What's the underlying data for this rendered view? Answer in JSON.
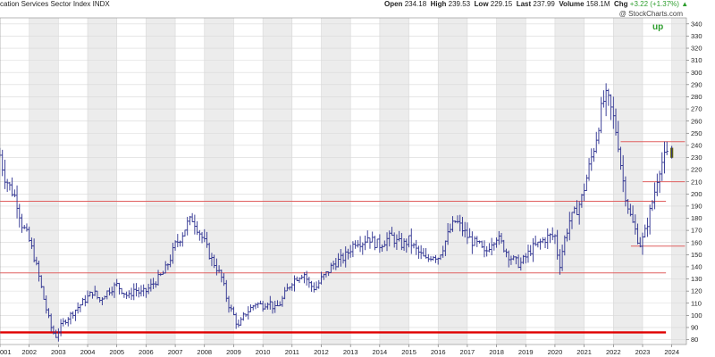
{
  "header": {
    "title": "cation Services Sector Index",
    "symbol": "INDX",
    "open_label": "Open",
    "open": "234.18",
    "high_label": "High",
    "high": "239.53",
    "low_label": "Low",
    "low": "229.15",
    "last_label": "Last",
    "last": "237.99",
    "volume_label": "Volume",
    "volume": "158.1M",
    "chg_label": "Chg",
    "chg": "+3.22 (+1.37%)",
    "chg_arrow": "▲"
  },
  "copyright": "@ StockCharts.com",
  "annotation": "up",
  "colors": {
    "bar": "#2b2f8f",
    "last_bar": "#6b6b00",
    "support_line": "#e06060",
    "major_line": "#e00000",
    "grid": "#d8d8d8",
    "band": "#ececec",
    "up": "#2e9e2e"
  },
  "chart_data": {
    "type": "ohlc",
    "title": "",
    "xlabel": "",
    "ylabel": "",
    "x_ticks": [
      "001",
      "2002",
      "2003",
      "2004",
      "2005",
      "2006",
      "2007",
      "2008",
      "2009",
      "2010",
      "2011",
      "2012",
      "2013",
      "2014",
      "2015",
      "2016",
      "2017",
      "2018",
      "2019",
      "2020",
      "2021",
      "2022",
      "2023",
      "2024"
    ],
    "y_ticks": [
      80,
      90,
      100,
      110,
      120,
      130,
      140,
      150,
      160,
      170,
      180,
      190,
      200,
      210,
      220,
      230,
      240,
      250,
      260,
      270,
      280,
      290,
      300,
      310,
      320,
      330,
      340
    ],
    "ylim": [
      76,
      345
    ],
    "xlim": [
      2001.0,
      2024.5
    ],
    "grid": true,
    "price_path": [
      [
        2001.0,
        232
      ],
      [
        2001.15,
        215
      ],
      [
        2001.35,
        205
      ],
      [
        2001.55,
        196
      ],
      [
        2001.75,
        175
      ],
      [
        2001.95,
        165
      ],
      [
        2002.15,
        150
      ],
      [
        2002.35,
        130
      ],
      [
        2002.55,
        108
      ],
      [
        2002.75,
        90
      ],
      [
        2002.9,
        82
      ],
      [
        2003.05,
        90
      ],
      [
        2003.2,
        95
      ],
      [
        2003.4,
        100
      ],
      [
        2003.6,
        105
      ],
      [
        2003.8,
        110
      ],
      [
        2004.0,
        115
      ],
      [
        2004.2,
        120
      ],
      [
        2004.4,
        112
      ],
      [
        2004.6,
        118
      ],
      [
        2004.8,
        122
      ],
      [
        2005.0,
        125
      ],
      [
        2005.2,
        120
      ],
      [
        2005.4,
        115
      ],
      [
        2005.6,
        122
      ],
      [
        2005.8,
        118
      ],
      [
        2006.0,
        120
      ],
      [
        2006.2,
        125
      ],
      [
        2006.4,
        130
      ],
      [
        2006.6,
        135
      ],
      [
        2006.8,
        145
      ],
      [
        2007.0,
        158
      ],
      [
        2007.2,
        165
      ],
      [
        2007.4,
        175
      ],
      [
        2007.6,
        180
      ],
      [
        2007.8,
        170
      ],
      [
        2008.0,
        160
      ],
      [
        2008.2,
        148
      ],
      [
        2008.4,
        140
      ],
      [
        2008.6,
        130
      ],
      [
        2008.8,
        110
      ],
      [
        2009.0,
        100
      ],
      [
        2009.15,
        90
      ],
      [
        2009.35,
        100
      ],
      [
        2009.55,
        105
      ],
      [
        2009.75,
        110
      ],
      [
        2010.0,
        108
      ],
      [
        2010.2,
        112
      ],
      [
        2010.4,
        105
      ],
      [
        2010.6,
        110
      ],
      [
        2010.8,
        120
      ],
      [
        2011.0,
        128
      ],
      [
        2011.2,
        132
      ],
      [
        2011.4,
        135
      ],
      [
        2011.6,
        125
      ],
      [
        2011.8,
        122
      ],
      [
        2012.0,
        130
      ],
      [
        2012.2,
        135
      ],
      [
        2012.4,
        142
      ],
      [
        2012.6,
        145
      ],
      [
        2012.8,
        148
      ],
      [
        2013.0,
        155
      ],
      [
        2013.2,
        162
      ],
      [
        2013.4,
        160
      ],
      [
        2013.6,
        165
      ],
      [
        2013.8,
        160
      ],
      [
        2014.0,
        158
      ],
      [
        2014.2,
        162
      ],
      [
        2014.4,
        165
      ],
      [
        2014.6,
        160
      ],
      [
        2014.8,
        158
      ],
      [
        2015.0,
        162
      ],
      [
        2015.2,
        155
      ],
      [
        2015.4,
        150
      ],
      [
        2015.6,
        145
      ],
      [
        2015.8,
        150
      ],
      [
        2016.0,
        148
      ],
      [
        2016.2,
        158
      ],
      [
        2016.4,
        170
      ],
      [
        2016.6,
        178
      ],
      [
        2016.8,
        172
      ],
      [
        2017.0,
        165
      ],
      [
        2017.2,
        160
      ],
      [
        2017.4,
        158
      ],
      [
        2017.6,
        150
      ],
      [
        2017.8,
        160
      ],
      [
        2018.0,
        165
      ],
      [
        2018.2,
        158
      ],
      [
        2018.4,
        150
      ],
      [
        2018.6,
        145
      ],
      [
        2018.8,
        142
      ],
      [
        2019.0,
        148
      ],
      [
        2019.2,
        155
      ],
      [
        2019.4,
        158
      ],
      [
        2019.6,
        162
      ],
      [
        2019.8,
        165
      ],
      [
        2020.0,
        165
      ],
      [
        2020.15,
        140
      ],
      [
        2020.3,
        160
      ],
      [
        2020.5,
        178
      ],
      [
        2020.7,
        185
      ],
      [
        2020.9,
        195
      ],
      [
        2021.05,
        210
      ],
      [
        2021.2,
        225
      ],
      [
        2021.4,
        245
      ],
      [
        2021.55,
        265
      ],
      [
        2021.7,
        280
      ],
      [
        2021.85,
        275
      ],
      [
        2022.0,
        262
      ],
      [
        2022.15,
        245
      ],
      [
        2022.3,
        215
      ],
      [
        2022.45,
        195
      ],
      [
        2022.6,
        180
      ],
      [
        2022.75,
        170
      ],
      [
        2022.9,
        158
      ],
      [
        2023.05,
        165
      ],
      [
        2023.2,
        180
      ],
      [
        2023.4,
        200
      ],
      [
        2023.55,
        220
      ],
      [
        2023.7,
        228
      ],
      [
        2023.85,
        232
      ],
      [
        2023.95,
        238
      ]
    ],
    "horizontal_lines": [
      {
        "y": 243,
        "x_start": 2022.25,
        "x_end": 2024.45,
        "style": "support"
      },
      {
        "y": 210,
        "x_start": 2023.0,
        "x_end": 2024.45,
        "style": "support"
      },
      {
        "y": 194,
        "x_start": 2001.0,
        "x_end": 2023.8,
        "style": "support"
      },
      {
        "y": 157,
        "x_start": 2022.6,
        "x_end": 2024.45,
        "style": "support"
      },
      {
        "y": 135,
        "x_start": 2001.0,
        "x_end": 2023.8,
        "style": "support"
      },
      {
        "y": 86,
        "x_start": 2001.0,
        "x_end": 2023.8,
        "style": "major"
      }
    ],
    "last_bar": {
      "x": 2024.0,
      "open": 234.18,
      "high": 239.53,
      "low": 229.15,
      "close": 237.99
    }
  }
}
